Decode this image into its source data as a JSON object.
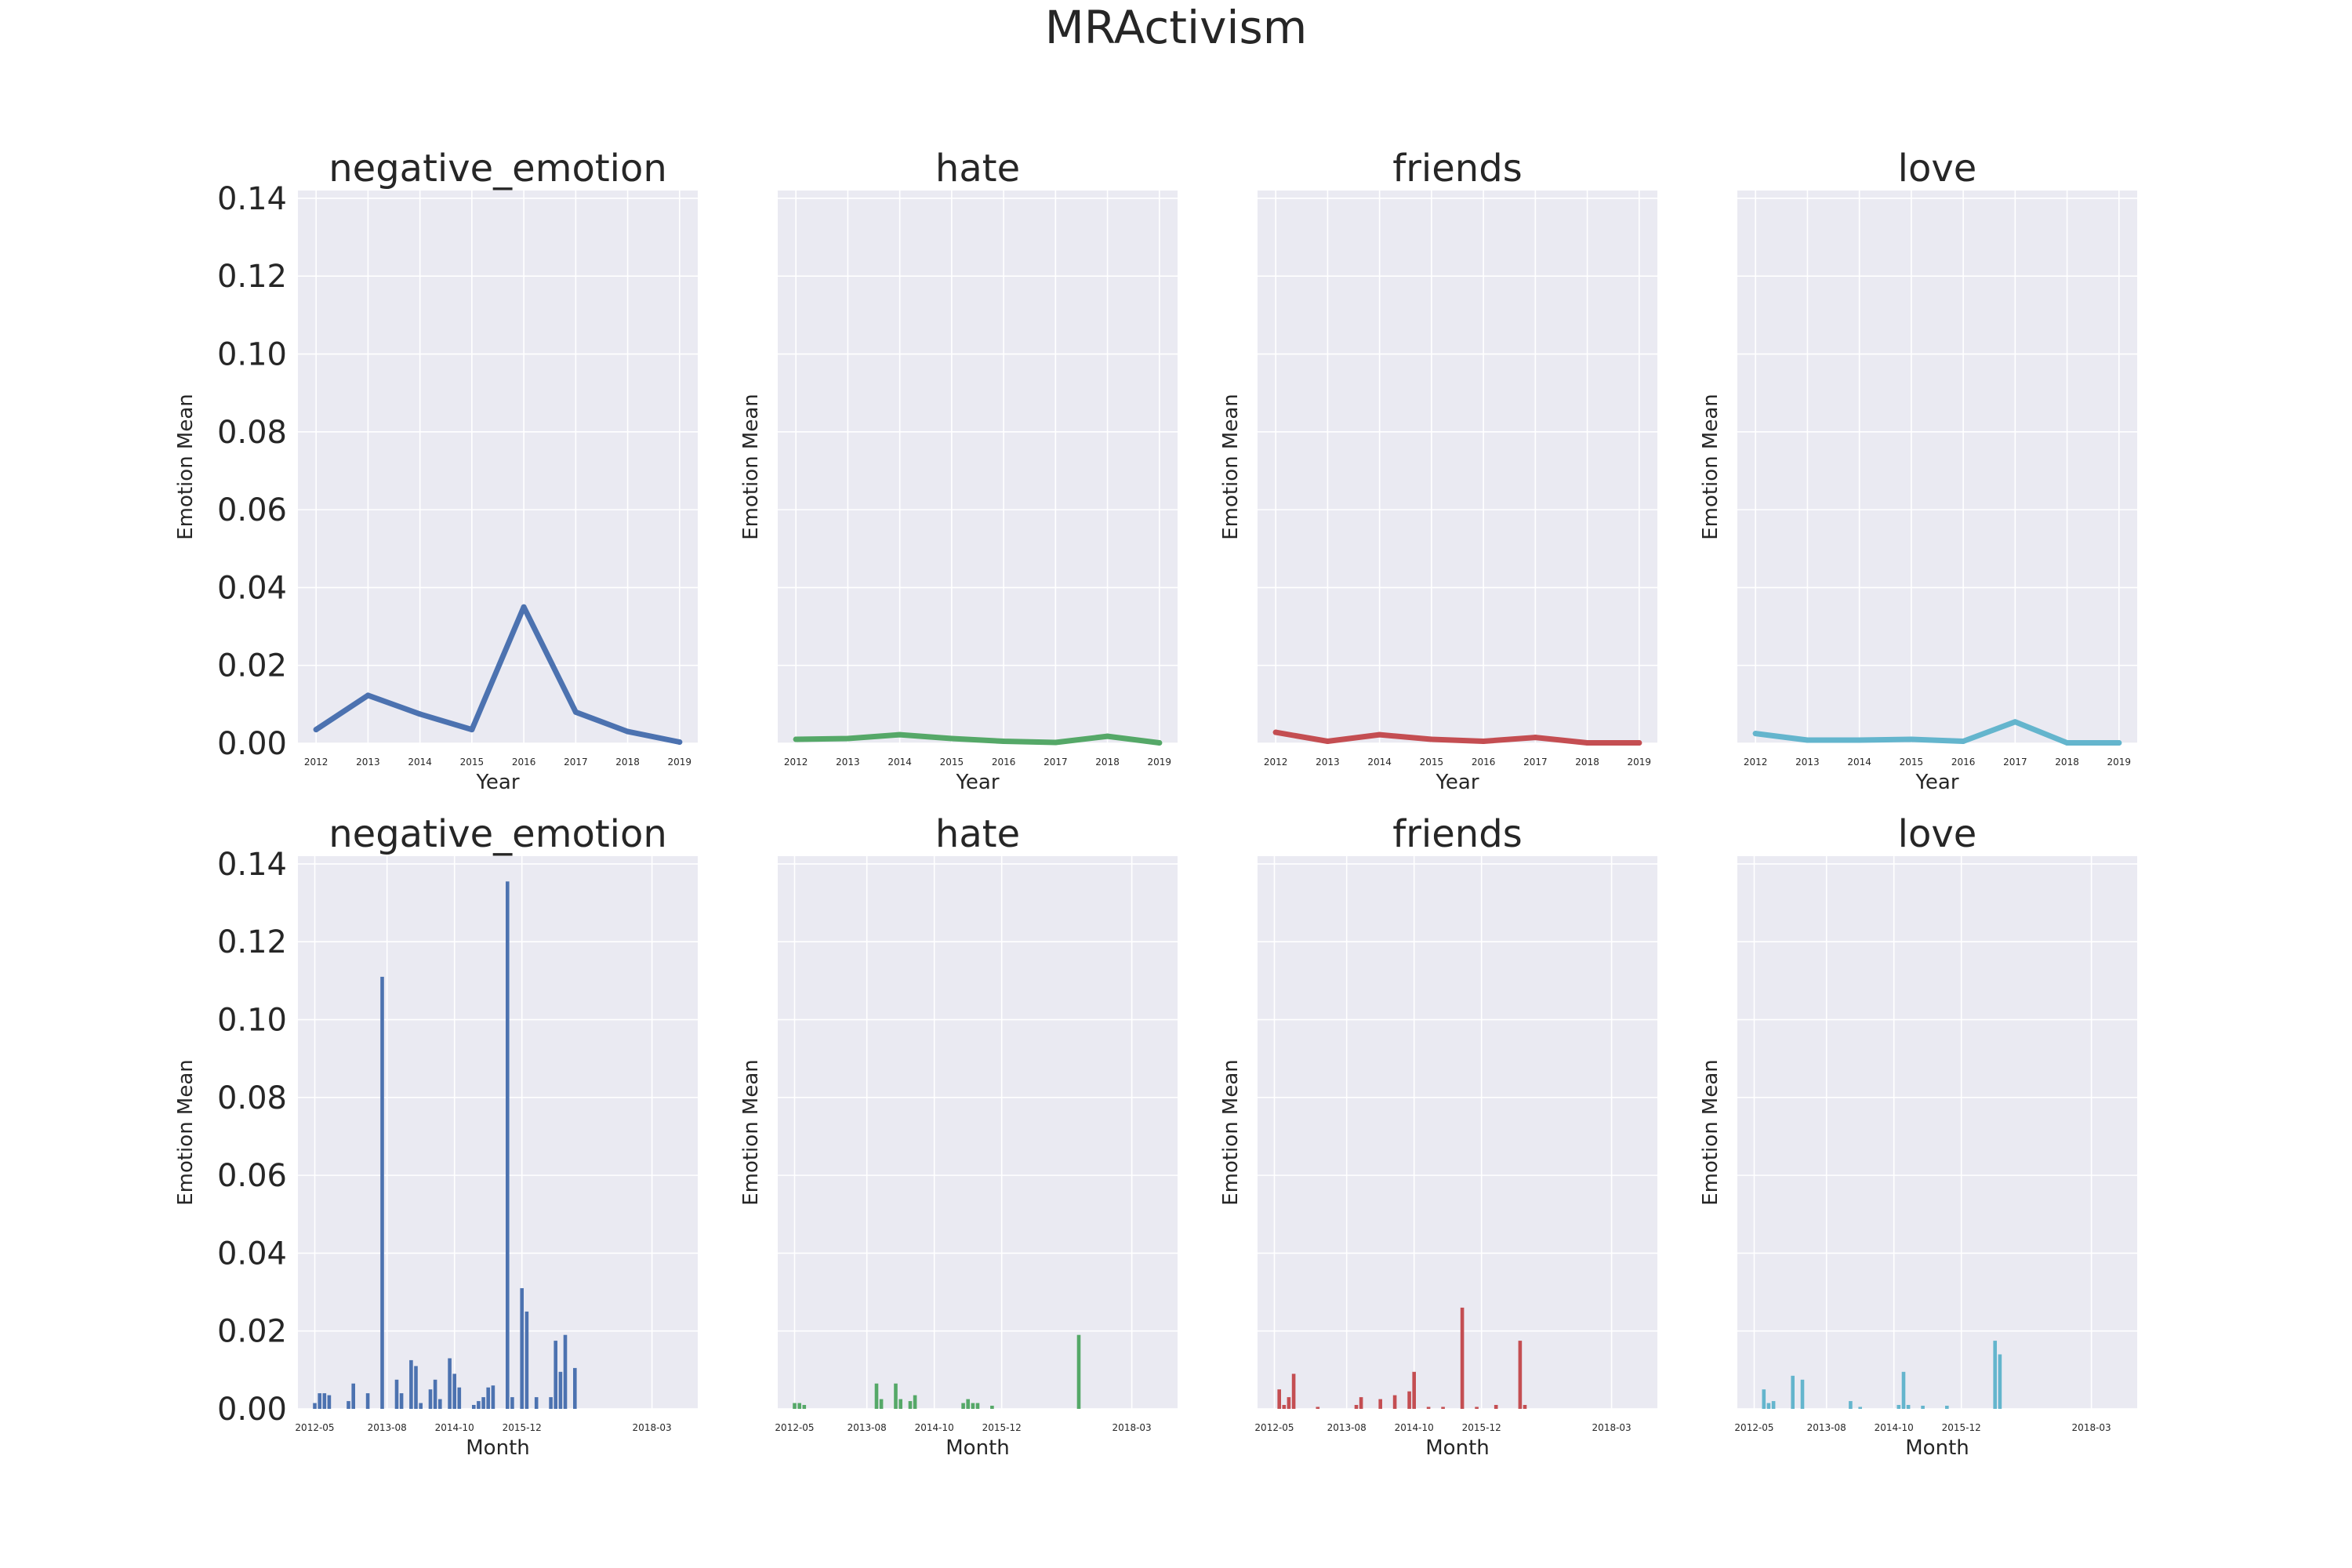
{
  "figure_title": "MRActivism",
  "colors": {
    "negative_emotion": "#4c72b0",
    "hate": "#55a868",
    "friends": "#c44e52",
    "love": "#64b5cd"
  },
  "chart_data": [
    {
      "type": "line",
      "row": 0,
      "col": 0,
      "title": "negative_emotion",
      "xlabel": "Year",
      "ylabel": "Emotion Mean",
      "x": [
        2012,
        2013,
        2014,
        2015,
        2016,
        2017,
        2018,
        2019
      ],
      "xticks": [
        "2012",
        "2013",
        "2014",
        "2015",
        "2016",
        "2017",
        "2018",
        "2019"
      ],
      "values": [
        0.0035,
        0.0123,
        0.0075,
        0.0035,
        0.035,
        0.008,
        0.003,
        0.0003
      ],
      "ylim": [
        0,
        0.142
      ],
      "grid": true
    },
    {
      "type": "line",
      "row": 0,
      "col": 1,
      "title": "hate",
      "xlabel": "Year",
      "ylabel": "Emotion Mean",
      "x": [
        2012,
        2013,
        2014,
        2015,
        2016,
        2017,
        2018,
        2019
      ],
      "xticks": [
        "2012",
        "2013",
        "2014",
        "2015",
        "2016",
        "2017",
        "2018",
        "2019"
      ],
      "values": [
        0.001,
        0.0012,
        0.0022,
        0.0012,
        0.0005,
        0.0002,
        0.0018,
        0.0001
      ],
      "ylim": [
        0,
        0.142
      ],
      "grid": true
    },
    {
      "type": "line",
      "row": 0,
      "col": 2,
      "title": "friends",
      "xlabel": "Year",
      "ylabel": "Emotion Mean",
      "x": [
        2012,
        2013,
        2014,
        2015,
        2016,
        2017,
        2018,
        2019
      ],
      "xticks": [
        "2012",
        "2013",
        "2014",
        "2015",
        "2016",
        "2017",
        "2018",
        "2019"
      ],
      "values": [
        0.0028,
        0.0005,
        0.0022,
        0.001,
        0.0005,
        0.0015,
        0.0001,
        0.0001
      ],
      "ylim": [
        0,
        0.142
      ],
      "grid": true
    },
    {
      "type": "line",
      "row": 0,
      "col": 3,
      "title": "love",
      "xlabel": "Year",
      "ylabel": "Emotion Mean",
      "x": [
        2012,
        2013,
        2014,
        2015,
        2016,
        2017,
        2018,
        2019
      ],
      "xticks": [
        "2012",
        "2013",
        "2014",
        "2015",
        "2016",
        "2017",
        "2018",
        "2019"
      ],
      "values": [
        0.0025,
        0.0008,
        0.0008,
        0.001,
        0.0005,
        0.0055,
        0.0001,
        0.0001
      ],
      "ylim": [
        0,
        0.142
      ],
      "grid": true
    },
    {
      "type": "bar",
      "row": 1,
      "col": 0,
      "title": "negative_emotion",
      "xlabel": "Month",
      "ylabel": "Emotion Mean",
      "xticks": [
        "2012-05",
        "2013-08",
        "2014-10",
        "2015-12",
        "2018-03"
      ],
      "points": [
        [
          "2012-05",
          0.0015
        ],
        [
          "2012-06",
          0.004
        ],
        [
          "2012-07",
          0.004
        ],
        [
          "2012-08",
          0.0035
        ],
        [
          "2012-12",
          0.002
        ],
        [
          "2013-01",
          0.0065
        ],
        [
          "2013-04",
          0.004
        ],
        [
          "2013-07",
          0.111
        ],
        [
          "2013-10",
          0.0075
        ],
        [
          "2013-11",
          0.004
        ],
        [
          "2014-01",
          0.0125
        ],
        [
          "2014-02",
          0.011
        ],
        [
          "2014-03",
          0.0015
        ],
        [
          "2014-05",
          0.005
        ],
        [
          "2014-06",
          0.0075
        ],
        [
          "2014-07",
          0.0025
        ],
        [
          "2014-09",
          0.013
        ],
        [
          "2014-10",
          0.009
        ],
        [
          "2014-11",
          0.0055
        ],
        [
          "2015-02",
          0.001
        ],
        [
          "2015-03",
          0.002
        ],
        [
          "2015-04",
          0.003
        ],
        [
          "2015-05",
          0.0055
        ],
        [
          "2015-06",
          0.006
        ],
        [
          "2015-09",
          0.1355
        ],
        [
          "2015-10",
          0.003
        ],
        [
          "2015-12",
          0.031
        ],
        [
          "2016-01",
          0.025
        ],
        [
          "2016-03",
          0.003
        ],
        [
          "2016-06",
          0.003
        ],
        [
          "2016-07",
          0.0175
        ],
        [
          "2016-08",
          0.0095
        ],
        [
          "2016-09",
          0.019
        ],
        [
          "2016-11",
          0.0105
        ]
      ],
      "ylim": [
        0,
        0.142
      ],
      "grid": true
    },
    {
      "type": "bar",
      "row": 1,
      "col": 1,
      "title": "hate",
      "xlabel": "Month",
      "ylabel": "Emotion Mean",
      "xticks": [
        "2012-05",
        "2013-08",
        "2014-10",
        "2015-12",
        "2018-03"
      ],
      "points": [
        [
          "2012-05",
          0.0015
        ],
        [
          "2012-06",
          0.0015
        ],
        [
          "2012-07",
          0.001
        ],
        [
          "2013-10",
          0.0065
        ],
        [
          "2013-11",
          0.0025
        ],
        [
          "2014-02",
          0.0065
        ],
        [
          "2014-03",
          0.0025
        ],
        [
          "2014-05",
          0.002
        ],
        [
          "2014-06",
          0.0035
        ],
        [
          "2015-04",
          0.0015
        ],
        [
          "2015-05",
          0.0025
        ],
        [
          "2015-06",
          0.0015
        ],
        [
          "2015-07",
          0.0015
        ],
        [
          "2015-10",
          0.0008
        ],
        [
          "2017-04",
          0.019
        ]
      ],
      "ylim": [
        0,
        0.142
      ],
      "grid": true
    },
    {
      "type": "bar",
      "row": 1,
      "col": 2,
      "title": "friends",
      "xlabel": "Month",
      "ylabel": "Emotion Mean",
      "xticks": [
        "2012-05",
        "2013-08",
        "2014-10",
        "2015-12",
        "2018-03"
      ],
      "points": [
        [
          "2012-06",
          0.005
        ],
        [
          "2012-07",
          0.001
        ],
        [
          "2012-08",
          0.003
        ],
        [
          "2012-09",
          0.009
        ],
        [
          "2013-02",
          0.0005
        ],
        [
          "2013-10",
          0.001
        ],
        [
          "2013-11",
          0.003
        ],
        [
          "2014-03",
          0.0025
        ],
        [
          "2014-06",
          0.0035
        ],
        [
          "2014-09",
          0.0045
        ],
        [
          "2014-10",
          0.0095
        ],
        [
          "2015-01",
          0.0005
        ],
        [
          "2015-04",
          0.0005
        ],
        [
          "2015-08",
          0.026
        ],
        [
          "2015-11",
          0.0005
        ],
        [
          "2016-03",
          0.001
        ],
        [
          "2016-08",
          0.0175
        ],
        [
          "2016-09",
          0.001
        ]
      ],
      "ylim": [
        0,
        0.142
      ],
      "grid": true
    },
    {
      "type": "bar",
      "row": 1,
      "col": 3,
      "title": "love",
      "xlabel": "Month",
      "ylabel": "Emotion Mean",
      "xticks": [
        "2012-05",
        "2013-08",
        "2014-10",
        "2015-12",
        "2018-03"
      ],
      "points": [
        [
          "2012-07",
          0.005
        ],
        [
          "2012-08",
          0.0015
        ],
        [
          "2012-09",
          0.002
        ],
        [
          "2013-01",
          0.0085
        ],
        [
          "2013-03",
          0.0075
        ],
        [
          "2014-01",
          0.002
        ],
        [
          "2014-03",
          0.0005
        ],
        [
          "2014-11",
          0.001
        ],
        [
          "2014-12",
          0.0095
        ],
        [
          "2015-01",
          0.001
        ],
        [
          "2015-04",
          0.0008
        ],
        [
          "2015-09",
          0.0008
        ],
        [
          "2016-07",
          0.0175
        ],
        [
          "2016-08",
          0.014
        ]
      ],
      "ylim": [
        0,
        0.142
      ],
      "grid": true
    }
  ],
  "y_tick_labels": [
    "0.00",
    "0.02",
    "0.04",
    "0.06",
    "0.08",
    "0.10",
    "0.12",
    "0.14"
  ]
}
